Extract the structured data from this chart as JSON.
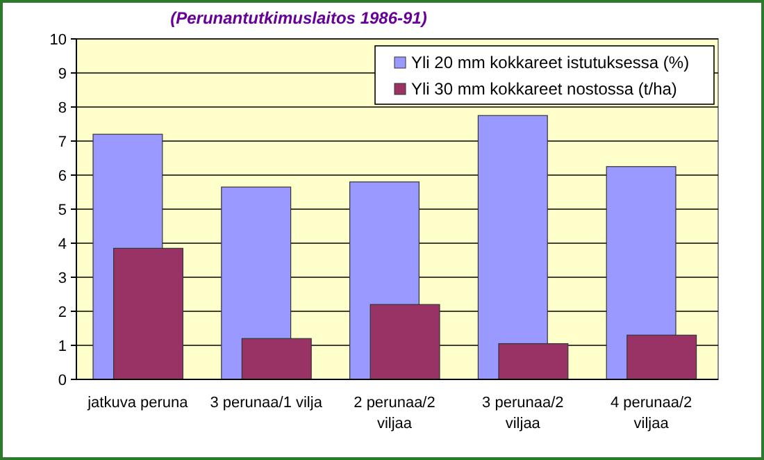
{
  "chart_data": {
    "type": "bar",
    "title": "(Perunantutkimuslaitos 1986-91)",
    "categories": [
      "jatkuva peruna",
      "3 perunaa/1 vilja",
      "2 perunaa/2 viljaa",
      "3 perunaa/2 viljaa",
      "4 perunaa/2 viljaa"
    ],
    "series": [
      {
        "name": "Yli 20 mm kokkareet istutuksessa (%)",
        "color": "#9999ff",
        "values": [
          7.2,
          5.65,
          5.8,
          7.75,
          6.25
        ]
      },
      {
        "name": "Yli 30 mm kokkareet nostossa (t/ha)",
        "color": "#993366",
        "values": [
          3.85,
          1.2,
          2.2,
          1.05,
          1.3
        ]
      }
    ],
    "ylim": [
      0,
      10
    ],
    "yticks": [
      0,
      1,
      2,
      3,
      4,
      5,
      6,
      7,
      8,
      9,
      10
    ],
    "grid": "y",
    "legend": "top right"
  }
}
